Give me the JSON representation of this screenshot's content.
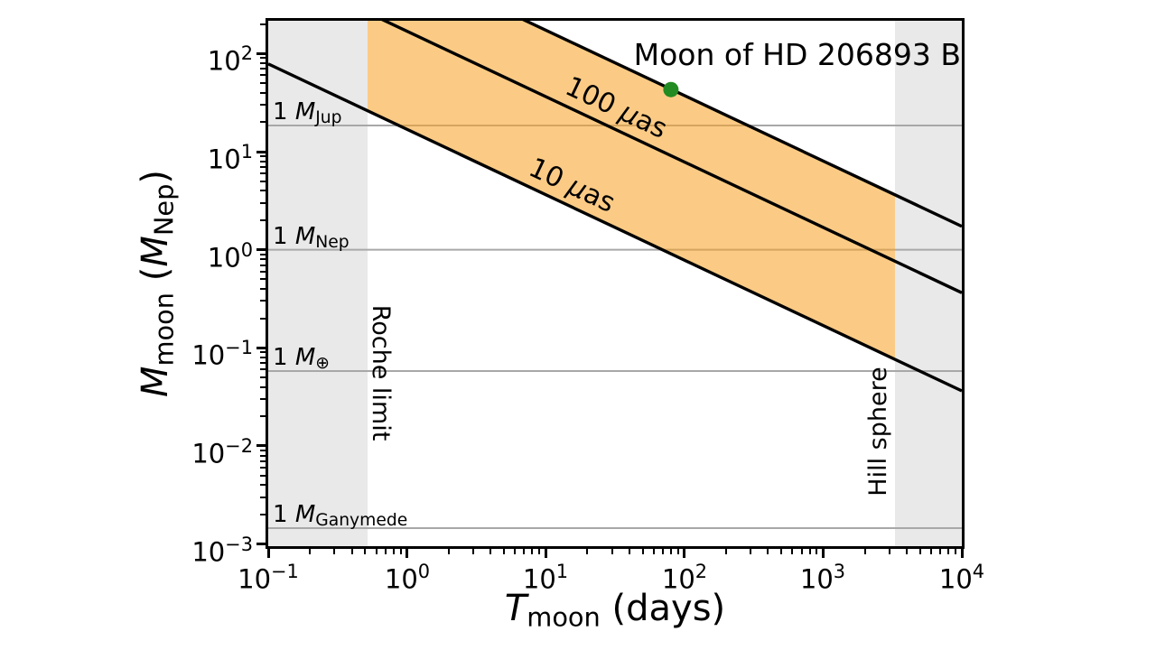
{
  "chart_data": {
    "type": "line",
    "xscale": "log",
    "yscale": "log",
    "xlim": [
      0.1,
      10000
    ],
    "ylim": [
      0.00095,
      216
    ],
    "xlabel": {
      "sym": "T",
      "sub": "moon",
      "suffix": " (days)"
    },
    "ylabel": {
      "sym": "M",
      "sub": "moon",
      "open": " (",
      "unit_sym": "M",
      "unit_sub": "Nep",
      "close": ")"
    },
    "x_major_tick_exponents": [
      -1,
      0,
      1,
      2,
      3,
      4
    ],
    "y_major_tick_exponents": [
      -3,
      -2,
      -1,
      0,
      1,
      2
    ],
    "annotation": "Moon of HD 206893 B",
    "data_point": {
      "T_days": 80,
      "M_mnep": 43
    },
    "excluded_regions": [
      {
        "label": "Roche limit",
        "x_from": 0.1,
        "x_to": 0.52
      },
      {
        "label": "Hill sphere",
        "x_from": 3300,
        "x_to": 10000
      }
    ],
    "reference_lines": [
      {
        "M_mnep": 18.5,
        "prefix": "1 ",
        "sym": "M",
        "sub": "Jup"
      },
      {
        "M_mnep": 1.0,
        "prefix": "1 ",
        "sym": "M",
        "sub": "Nep"
      },
      {
        "M_mnep": 0.058,
        "prefix": "1 ",
        "sym": "M",
        "sub": "⊕"
      },
      {
        "M_mnep": 0.00145,
        "prefix": "1 ",
        "sym": "M",
        "sub": "Ganymede"
      }
    ],
    "signal_lines": [
      {
        "label": "",
        "M_at_1day": 804
      },
      {
        "label": "100 μas",
        "M_at_1day": 169,
        "label_T": 28
      },
      {
        "label": "10 μas",
        "M_at_1day": 16.9,
        "label_T": 13.5
      }
    ],
    "slope_loglog": -0.6667,
    "shaded_band": {
      "x_from": 0.52,
      "x_to": 3300,
      "upper_line": 0,
      "lower_line": 2
    }
  },
  "colors": {
    "background": "#ffffff",
    "excluded_region": "#e9e9e9",
    "reference_line": "#a8a8a8",
    "band": "rgba(248,162,38,0.56)",
    "line": "#000000",
    "data_point": "#228b22"
  }
}
